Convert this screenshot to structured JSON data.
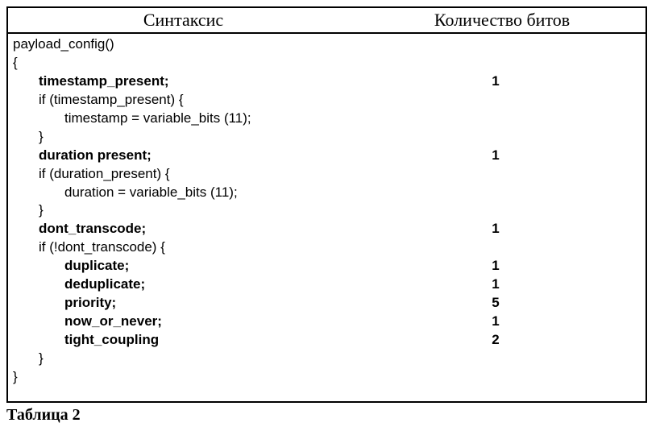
{
  "header": {
    "syntax_label": "Синтаксис",
    "bits_label": "Количество битов"
  },
  "caption": "Таблица 2",
  "lines": [
    {
      "indent": 0,
      "text": "payload_config()",
      "bold": false,
      "bits": ""
    },
    {
      "indent": 0,
      "text": "{",
      "bold": false,
      "bits": ""
    },
    {
      "indent": 1,
      "text": "timestamp_present;",
      "bold": true,
      "bits": "1"
    },
    {
      "indent": 1,
      "text": "if (timestamp_present) {",
      "bold": false,
      "bits": ""
    },
    {
      "indent": 2,
      "text": "timestamp = variable_bits (11);",
      "bold": false,
      "bits": ""
    },
    {
      "indent": 1,
      "text": "}",
      "bold": false,
      "bits": ""
    },
    {
      "indent": 1,
      "text": "duration present;",
      "bold": true,
      "bits": "1"
    },
    {
      "indent": 1,
      "text": "if (duration_present) {",
      "bold": false,
      "bits": ""
    },
    {
      "indent": 2,
      "text": "duration = variable_bits (11);",
      "bold": false,
      "bits": ""
    },
    {
      "indent": 1,
      "text": "}",
      "bold": false,
      "bits": ""
    },
    {
      "indent": 1,
      "text": "dont_transcode;",
      "bold": true,
      "bits": "1"
    },
    {
      "indent": 1,
      "text": "if (!dont_transcode) {",
      "bold": false,
      "bits": ""
    },
    {
      "indent": 2,
      "text": "duplicate;",
      "bold": true,
      "bits": "1"
    },
    {
      "indent": 2,
      "text": "deduplicate;",
      "bold": true,
      "bits": "1"
    },
    {
      "indent": 2,
      "text": "priority;",
      "bold": true,
      "bits": "5"
    },
    {
      "indent": 2,
      "text": "now_or_never;",
      "bold": true,
      "bits": "1"
    },
    {
      "indent": 2,
      "text": "tight_coupling",
      "bold": true,
      "bits": "2"
    },
    {
      "indent": 1,
      "text": "}",
      "bold": false,
      "bits": ""
    },
    {
      "indent": 0,
      "text": "}",
      "bold": false,
      "bits": ""
    }
  ]
}
